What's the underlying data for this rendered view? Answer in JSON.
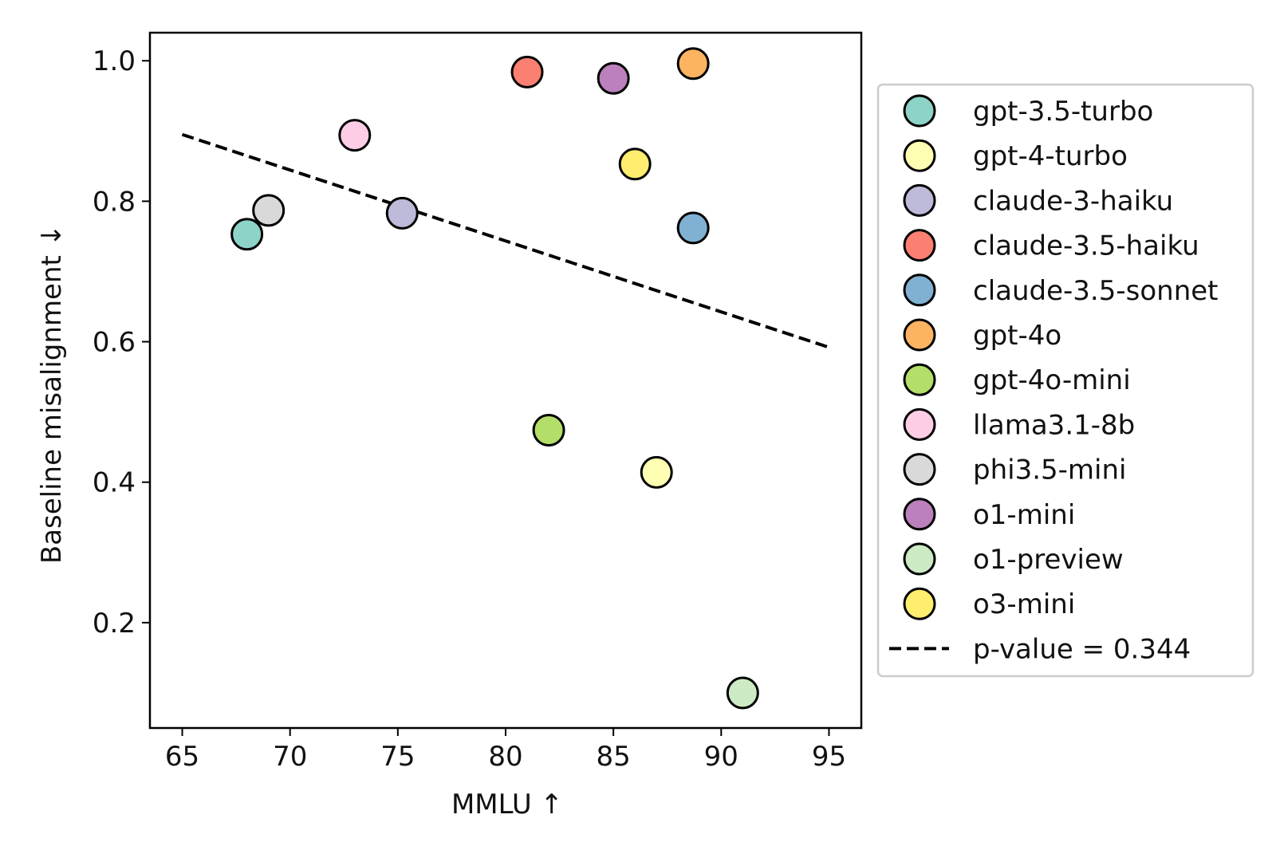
{
  "chart_data": {
    "type": "scatter",
    "title": "",
    "xlabel": "MMLU ↑",
    "ylabel": "Baseline misalignment ↓",
    "xlim": [
      63.5,
      96.5
    ],
    "ylim": [
      0.05,
      1.04
    ],
    "xticks": [
      65,
      70,
      75,
      80,
      85,
      90,
      95
    ],
    "xtick_labels": [
      "65",
      "70",
      "75",
      "80",
      "85",
      "90",
      "95"
    ],
    "yticks": [
      0.2,
      0.4,
      0.6,
      0.8,
      1.0
    ],
    "ytick_labels": [
      "0.2",
      "0.4",
      "0.6",
      "0.8",
      "1.0"
    ],
    "grid": false,
    "legend_position": "outside-right",
    "series": [
      {
        "name": "gpt-3.5-turbo",
        "color": "#8dd3c7",
        "x": 68.0,
        "y": 0.753
      },
      {
        "name": "gpt-4-turbo",
        "color": "#ffffb3",
        "x": 87.0,
        "y": 0.414
      },
      {
        "name": "claude-3-haiku",
        "color": "#bebada",
        "x": 75.2,
        "y": 0.783
      },
      {
        "name": "claude-3.5-haiku",
        "color": "#fb8072",
        "x": 81.0,
        "y": 0.984
      },
      {
        "name": "claude-3.5-sonnet",
        "color": "#80b1d3",
        "x": 88.7,
        "y": 0.762
      },
      {
        "name": "gpt-4o",
        "color": "#fdb462",
        "x": 88.7,
        "y": 0.996
      },
      {
        "name": "gpt-4o-mini",
        "color": "#b3de69",
        "x": 82.0,
        "y": 0.474
      },
      {
        "name": "llama3.1-8b",
        "color": "#fccde5",
        "x": 73.0,
        "y": 0.894
      },
      {
        "name": "phi3.5-mini",
        "color": "#d9d9d9",
        "x": 69.0,
        "y": 0.787
      },
      {
        "name": "o1-mini",
        "color": "#bc80bd",
        "x": 85.0,
        "y": 0.975
      },
      {
        "name": "o1-preview",
        "color": "#ccebc5",
        "x": 91.0,
        "y": 0.1
      },
      {
        "name": "o3-mini",
        "color": "#ffed6f",
        "x": 86.0,
        "y": 0.853
      }
    ],
    "trendline": {
      "label": "p-value = 0.344",
      "style": "dashed",
      "color": "#000000",
      "x": [
        65,
        95
      ],
      "y": [
        0.895,
        0.592
      ]
    }
  }
}
